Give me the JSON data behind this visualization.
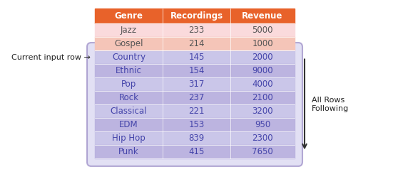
{
  "headers": [
    "Genre",
    "Recordings",
    "Revenue"
  ],
  "rows_before": [
    [
      "Jazz",
      "233",
      "5000"
    ],
    [
      "Gospel",
      "214",
      "1000"
    ]
  ],
  "rows_following": [
    [
      "Country",
      "145",
      "2000"
    ],
    [
      "Ethnic",
      "154",
      "9000"
    ],
    [
      "Pop",
      "317",
      "4000"
    ],
    [
      "Rock",
      "237",
      "2100"
    ],
    [
      "Classical",
      "221",
      "3200"
    ],
    [
      "EDM",
      "153",
      "950"
    ],
    [
      "Hip Hop",
      "839",
      "2300"
    ],
    [
      "Punk",
      "415",
      "7650"
    ]
  ],
  "header_bg": "#E8622A",
  "header_text": "#FFFFFF",
  "before_bg_even": "#FADADC",
  "before_bg_odd": "#F5C5B8",
  "following_bg_even": "#C8C4E8",
  "following_bg_odd": "#B8B0DE",
  "following_text": "#4444AA",
  "before_text": "#555555",
  "label_current": "Current input row →",
  "label_following": "All Rows\nFollowing",
  "rounded_box_edge": "#8877BB",
  "fig_width": 5.51,
  "fig_height": 2.59,
  "dpi": 100
}
